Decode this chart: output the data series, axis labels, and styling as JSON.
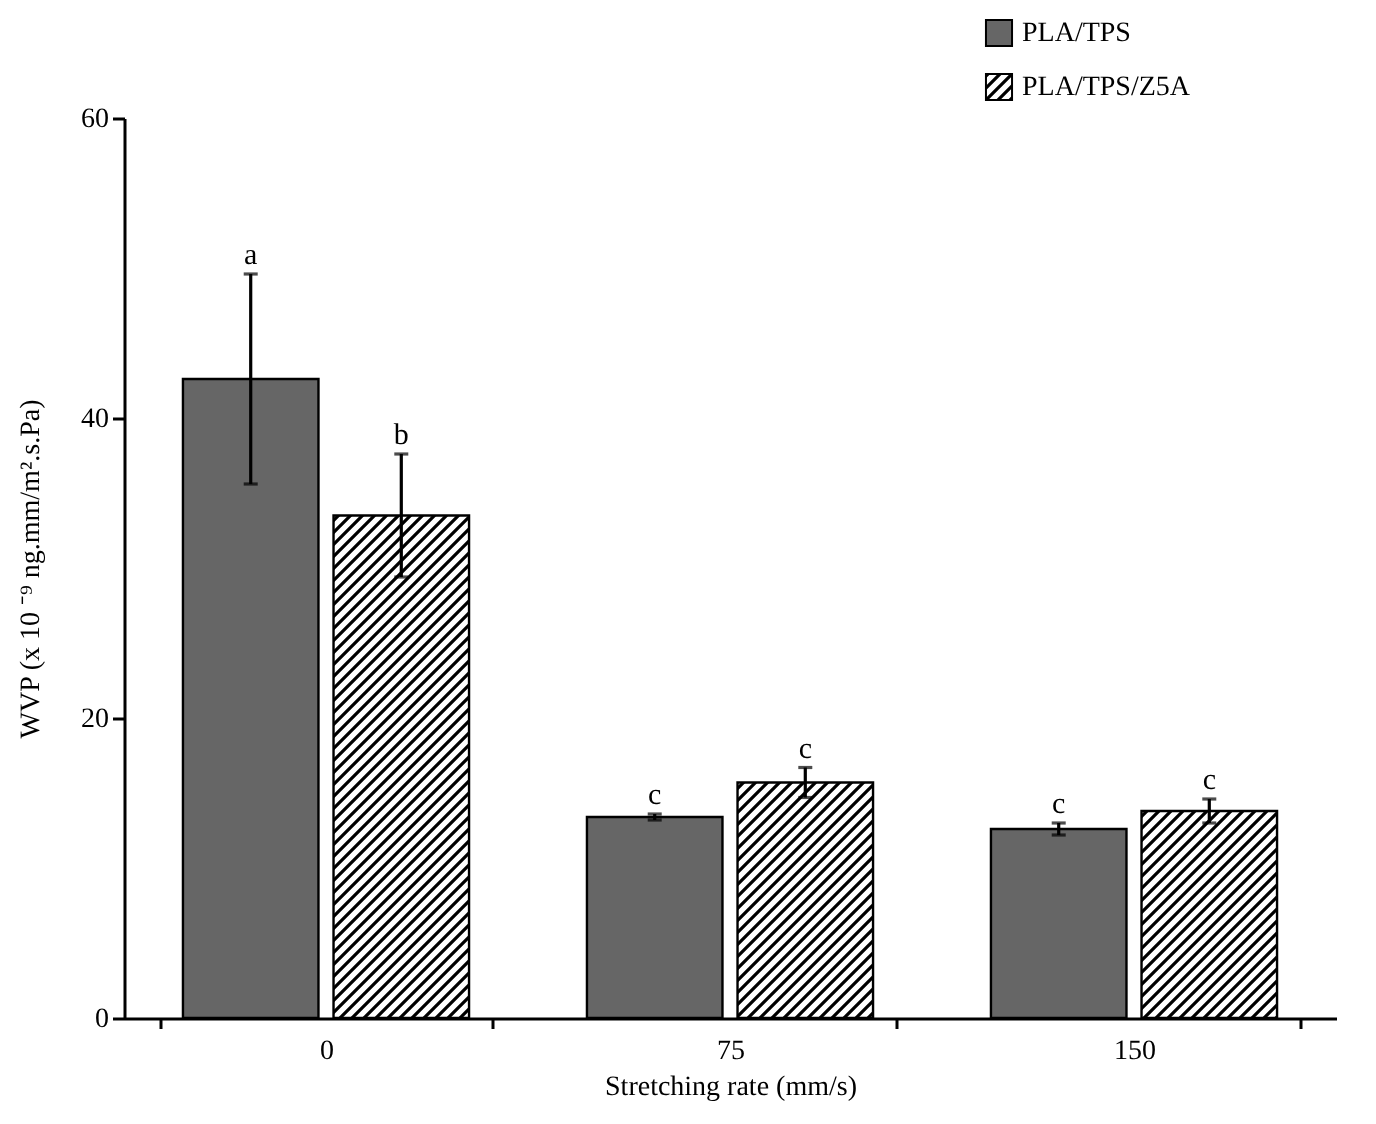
{
  "chart_data": {
    "type": "bar",
    "xlabel": "Stretching rate (mm/s)",
    "ylabel": "WVP (x 10 ⁻⁹ ng.mm/m².s.Pa)",
    "categories": [
      "0",
      "75",
      "150"
    ],
    "series": [
      {
        "name": "PLA/TPS",
        "color": "#666666",
        "values": [
          42.6,
          13.4,
          12.6
        ],
        "errors": [
          7.0,
          0.2,
          0.4
        ]
      },
      {
        "name": "PLA/TPS/Z5A",
        "color": "#000000",
        "values": [
          33.5,
          15.7,
          13.8
        ],
        "errors": [
          4.1,
          1.0,
          0.8
        ]
      }
    ],
    "annotations": [
      "a",
      "b",
      "c",
      "c",
      "c",
      "c"
    ],
    "ylim": [
      0,
      60
    ],
    "yticks": [
      0,
      20,
      40,
      60
    ],
    "grid": false,
    "legend": "top right"
  }
}
